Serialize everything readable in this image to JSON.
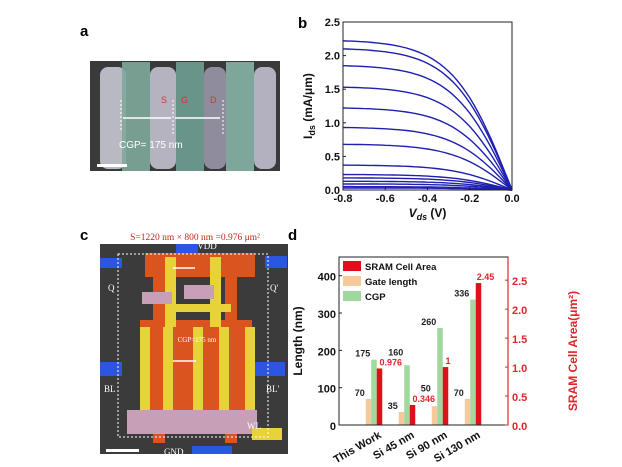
{
  "panels": {
    "a": {
      "label": "a",
      "annotation": "CGP= 175 nm",
      "regions": [
        "S",
        "G",
        "D"
      ]
    },
    "b": {
      "label": "b"
    },
    "c": {
      "label": "c",
      "title": "S=1220 nm × 800 nm =0.976 μm²",
      "annotation": "CGP=175 nm",
      "nodes": {
        "vdd": "VDD",
        "gnd": "GND",
        "q": "Q",
        "qp": "Q'",
        "bl": "BL",
        "blp": "BL'",
        "wl": "WL"
      }
    },
    "d": {
      "label": "d"
    }
  },
  "chart_data": [
    {
      "panel": "b",
      "type": "line",
      "xlabel_main": "V",
      "xlabel_sub": "ds",
      "xlabel_unit": " (V)",
      "ylabel_main": "I",
      "ylabel_sub": "ds",
      "ylabel_unit": " (mA/μm)",
      "xlim": [
        -0.8,
        0.0
      ],
      "ylim": [
        0.0,
        2.5
      ],
      "xticks": [
        "-0.8",
        "-0.6",
        "-0.4",
        "-0.2",
        "0.0"
      ],
      "yticks": [
        "0.0",
        "0.5",
        "1.0",
        "1.5",
        "2.0",
        "2.5"
      ],
      "color": "#1f1fb0",
      "curves_ids_at_vds_minus_0_8": [
        2.22,
        2.1,
        1.85,
        1.53,
        1.22,
        0.93,
        0.68,
        0.37,
        0.23,
        0.18,
        0.13,
        0.09,
        0.05,
        0.03
      ]
    },
    {
      "panel": "d",
      "type": "bar",
      "categories": [
        "This Work",
        "Si 45 nm",
        "Si 90 nm",
        "Si 130 nm"
      ],
      "ylabel": "Length (nm)",
      "ylabel_right": "SRAM Cell Area(μm²)",
      "ylim": [
        0,
        450
      ],
      "ylim_right": [
        0,
        2.9
      ],
      "yticks": [
        "0",
        "100",
        "200",
        "300",
        "400"
      ],
      "yticks_right": [
        "0.0",
        "0.5",
        "1.0",
        "1.5",
        "2.0",
        "2.5"
      ],
      "legend_position": "top-left",
      "series": [
        {
          "name": "Gate length",
          "axis": "left",
          "color": "#f7c99a",
          "values": [
            70,
            35,
            50,
            70
          ],
          "labels": [
            "70",
            "35",
            "50",
            "70"
          ]
        },
        {
          "name": "CGP",
          "axis": "left",
          "color": "#9fd9a0",
          "values": [
            175,
            160,
            260,
            336
          ],
          "labels": [
            "175",
            "160",
            "260",
            "336"
          ]
        },
        {
          "name": "SRAM Cell Area",
          "axis": "right",
          "color": "#e0101a",
          "values": [
            0.976,
            0.346,
            1,
            2.45
          ],
          "labels": [
            "0.976",
            "0.346",
            "1",
            "2.45"
          ]
        }
      ],
      "legend_order": [
        2,
        0,
        1
      ]
    }
  ]
}
